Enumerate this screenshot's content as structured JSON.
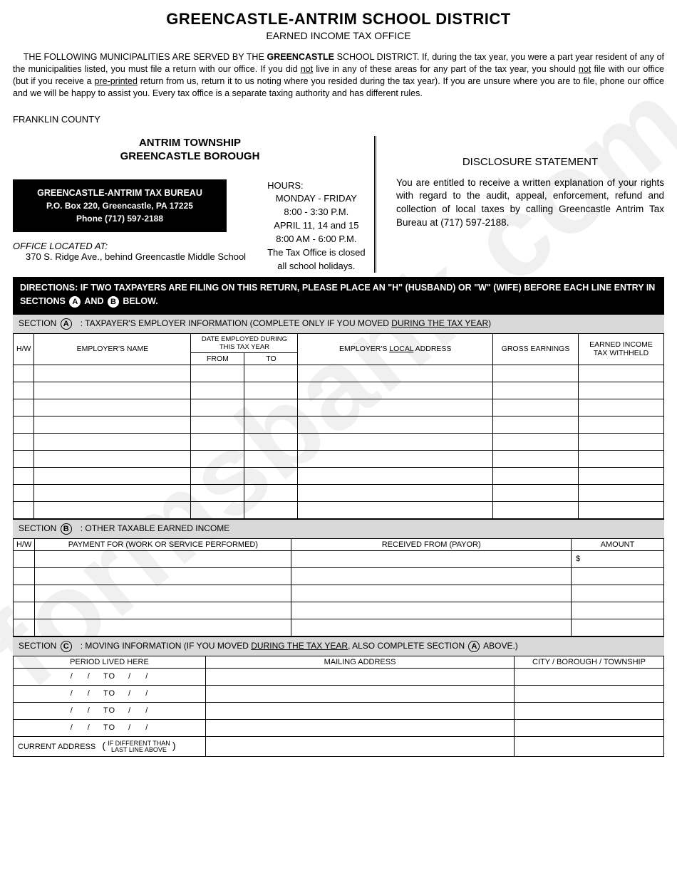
{
  "watermark": "formsbank.com",
  "header": {
    "title": "GREENCASTLE-ANTRIM SCHOOL DISTRICT",
    "subtitle": "EARNED INCOME TAX OFFICE"
  },
  "intro": {
    "p1a": "THE FOLLOWING MUNICIPALITIES ARE SERVED BY THE ",
    "p1b": "GREENCASTLE",
    "p1c": " SCHOOL DISTRICT. If, during the tax year, you were a part year resident of any of the municipalities listed, you must file a return with our office. If you did ",
    "p1_not1": "not",
    "p1d": " live in any of these areas for any part of the tax year, you should ",
    "p1_not2": "not",
    "p1e": " file with our office (but if you receive a ",
    "p1_pre": "pre-printed",
    "p1f": " return from us, return it to us noting where you resided during the tax year). If you are unsure where you are to file, phone our office and we will be happy to assist you. Every tax office is a separate taxing authority and has different rules."
  },
  "county": "FRANKLIN COUNTY",
  "township": {
    "line1": "ANTRIM TOWNSHIP",
    "line2": "GREENCASTLE BOROUGH"
  },
  "bureau": {
    "name": "GREENCASTLE-ANTRIM TAX BUREAU",
    "pobox": "P.O. Box 220, Greencastle, PA 17225",
    "phone": "Phone (717) 597-2188"
  },
  "office": {
    "located_label": "OFFICE LOCATED AT:",
    "address": "370 S. Ridge Ave., behind Greencastle Middle School"
  },
  "hours": {
    "label": "HOURS:",
    "l1": "MONDAY - FRIDAY",
    "l2": "8:00 - 3:30 P.M.",
    "l3": "APRIL 11, 14 and 15",
    "l4": "8:00 AM - 6:00 P.M.",
    "l5": "The Tax Office is closed",
    "l6": "all school holidays."
  },
  "disclosure": {
    "heading": "DISCLOSURE STATEMENT",
    "body": "You are entitled to receive a written explanation of your rights with regard to the audit, appeal, enforcement, refund and collection of local taxes by calling Greencastle Antrim Tax Bureau at (717) 597-2188."
  },
  "directions": {
    "lead": "DIRECTIONS:",
    "text1": " IF TWO TAXPAYERS ARE FILING ON THIS RETURN, PLEASE PLACE AN \"H\" (HUSBAND) OR \"W\" (WIFE) BEFORE EACH LINE ENTRY IN SECTIONS ",
    "a": "A",
    "and": " AND ",
    "b": "B",
    "text2": " BELOW."
  },
  "sectionA": {
    "label": "SECTION",
    "letter": "A",
    "desc1": ": TAXPAYER'S EMPLOYER INFORMATION (COMPLETE ONLY IF YOU MOVED ",
    "desc_u": "DURING THE TAX YEAR",
    "desc2": ")",
    "headers": {
      "hw": "H/W",
      "empname": "EMPLOYER'S NAME",
      "date_super": "DATE EMPLOYED DURING THIS TAX YEAR",
      "from": "FROM",
      "to": "TO",
      "addr1": "EMPLOYER'S ",
      "addr_u": "LOCAL",
      "addr2": " ADDRESS",
      "gross": "GROSS EARNINGS",
      "withheld1": "EARNED INCOME",
      "withheld2": "TAX WITHHELD"
    },
    "rows": 9
  },
  "sectionB": {
    "label": "SECTION",
    "letter": "B",
    "desc": ": OTHER TAXABLE EARNED INCOME",
    "headers": {
      "hw": "H/W",
      "pay": "PAYMENT FOR (WORK OR SERVICE PERFORMED)",
      "recv": "RECEIVED FROM (PAYOR)",
      "amt": "AMOUNT"
    },
    "dollar": "$",
    "rows": 5
  },
  "sectionC": {
    "label": "SECTION",
    "letter": "C",
    "desc1": ": MOVING INFORMATION (IF YOU MOVED ",
    "desc_u": "DURING THE TAX YEAR",
    "desc2": ", ALSO COMPLETE SECTION ",
    "desc_a": "A",
    "desc3": " ABOVE.)",
    "headers": {
      "period": "PERIOD LIVED HERE",
      "mail": "MAILING ADDRESS",
      "city": "CITY / BOROUGH / TOWNSHIP"
    },
    "period_template": {
      "slash": "/",
      "to": "TO"
    },
    "rows": 4,
    "curaddr": {
      "label": "CURRENT ADDRESS",
      "note1": "IF DIFFERENT THAN",
      "note2": "LAST LINE ABOVE",
      "lp": "(",
      "rp": ")"
    }
  }
}
